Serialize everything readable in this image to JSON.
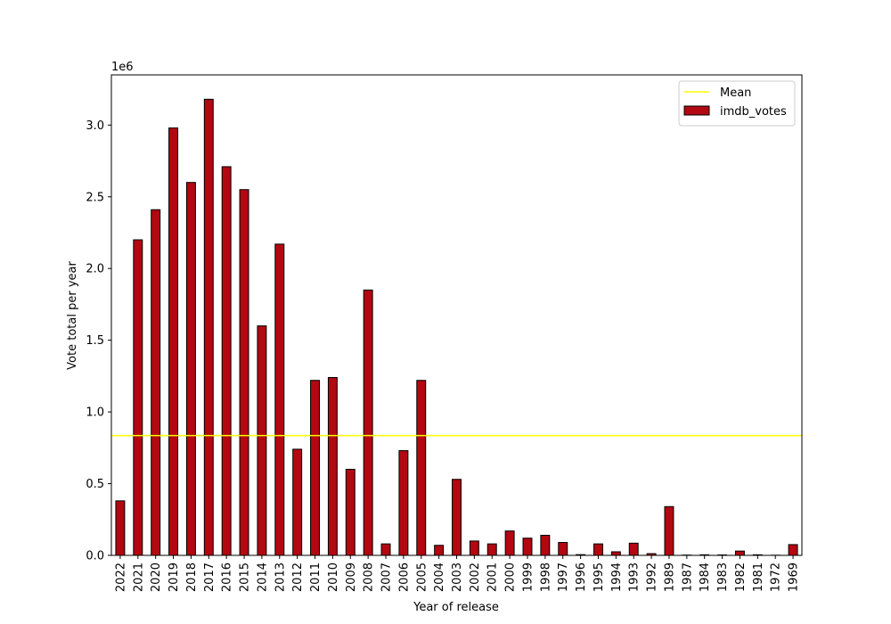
{
  "chart_data": {
    "type": "bar",
    "title": "",
    "xlabel": "Year of release",
    "ylabel": "Vote total per year",
    "offset_label": "1e6",
    "ylim": [
      0,
      3.35
    ],
    "yticks": [
      "0.0",
      "0.5",
      "1.0",
      "1.5",
      "2.0",
      "2.5",
      "3.0"
    ],
    "legend_position": "upper right",
    "grid": false,
    "bar_color": "#b30711",
    "mean_color": "#ffff00",
    "mean_value": 0.835,
    "categories": [
      "2022",
      "2021",
      "2020",
      "2019",
      "2018",
      "2017",
      "2016",
      "2015",
      "2014",
      "2013",
      "2012",
      "2011",
      "2010",
      "2009",
      "2008",
      "2007",
      "2006",
      "2005",
      "2004",
      "2003",
      "2002",
      "2001",
      "2000",
      "1999",
      "1998",
      "1997",
      "1996",
      "1995",
      "1994",
      "1993",
      "1992",
      "1989",
      "1987",
      "1984",
      "1983",
      "1982",
      "1981",
      "1972",
      "1969"
    ],
    "series": [
      {
        "name": "imdb_votes",
        "values": [
          0.38,
          2.2,
          2.41,
          2.98,
          2.6,
          3.18,
          2.71,
          2.55,
          1.6,
          2.17,
          0.74,
          1.22,
          1.24,
          0.6,
          1.85,
          0.08,
          0.73,
          1.22,
          0.07,
          0.53,
          0.1,
          0.08,
          0.17,
          0.12,
          0.14,
          0.09,
          0.005,
          0.08,
          0.025,
          0.085,
          0.012,
          0.34,
          0.002,
          0.004,
          0.003,
          0.03,
          0.004,
          0.001,
          0.075
        ]
      }
    ],
    "mean_label": "Mean"
  }
}
